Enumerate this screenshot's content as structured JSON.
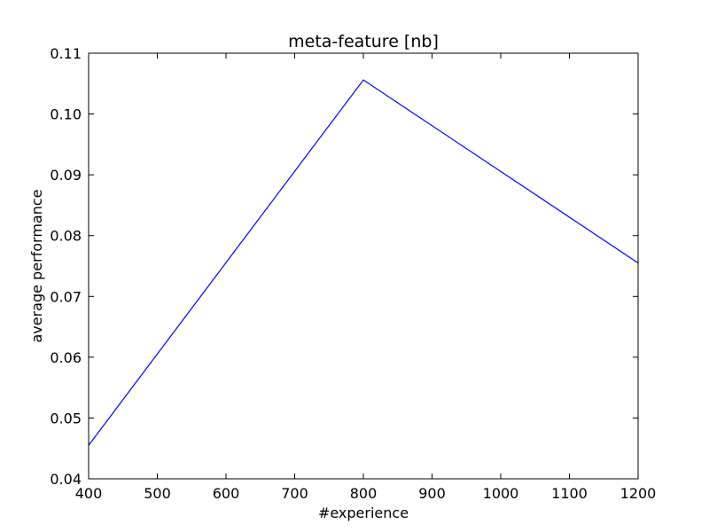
{
  "chart_data": {
    "type": "line",
    "title": "meta-feature [nb]",
    "xlabel": "#experience",
    "ylabel": "average performance",
    "xlim": [
      400,
      1200
    ],
    "ylim": [
      0.04,
      0.11
    ],
    "x_ticks": [
      "400",
      "500",
      "600",
      "700",
      "800",
      "900",
      "1000",
      "1100",
      "1200"
    ],
    "y_ticks": [
      "0.04",
      "0.05",
      "0.06",
      "0.07",
      "0.08",
      "0.09",
      "0.10",
      "0.11"
    ],
    "grid": false,
    "series": [
      {
        "color": "#0000ff",
        "x": [
          400,
          800,
          1200
        ],
        "y": [
          0.0455,
          0.1056,
          0.0755
        ]
      }
    ]
  }
}
